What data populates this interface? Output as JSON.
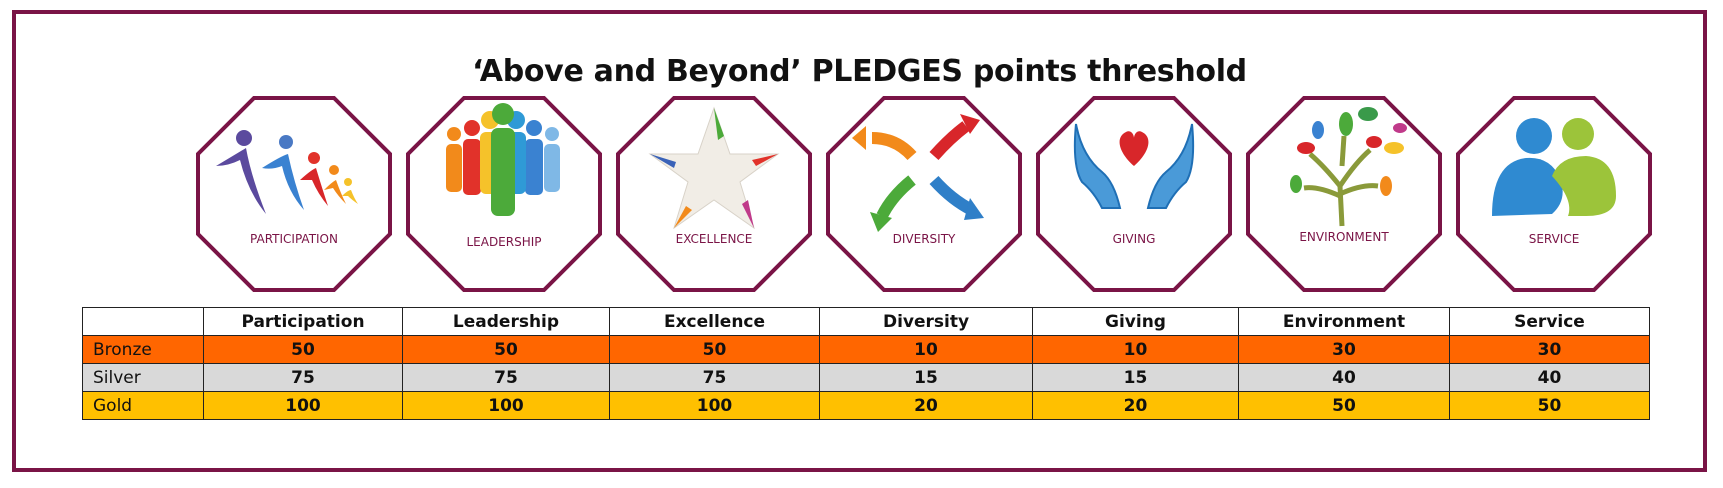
{
  "title": "‘Above and Beyond’ PLEDGES points threshold",
  "pledges": [
    {
      "label": "PARTICIPATION",
      "icon": "participation-icon"
    },
    {
      "label": "LEADERSHIP",
      "icon": "leadership-icon"
    },
    {
      "label": "EXCELLENCE",
      "icon": "excellence-icon"
    },
    {
      "label": "DIVERSITY",
      "icon": "diversity-icon"
    },
    {
      "label": "GIVING",
      "icon": "giving-icon"
    },
    {
      "label": "ENVIRONMENT",
      "icon": "environment-icon"
    },
    {
      "label": "SERVICE",
      "icon": "service-icon"
    }
  ],
  "table": {
    "columns": [
      "",
      "Participation",
      "Leadership",
      "Excellence",
      "Diversity",
      "Giving",
      "Environment",
      "Service"
    ],
    "rows": [
      {
        "label": "Bronze",
        "values": [
          "50",
          "50",
          "50",
          "10",
          "10",
          "30",
          "30"
        ],
        "color": "#ff6600"
      },
      {
        "label": "Silver",
        "values": [
          "75",
          "75",
          "75",
          "15",
          "15",
          "40",
          "40"
        ],
        "color": "#d9d9d9"
      },
      {
        "label": "Gold",
        "values": [
          "100",
          "100",
          "100",
          "20",
          "20",
          "50",
          "50"
        ],
        "color": "#ffc000"
      }
    ]
  },
  "colors": {
    "frame": "#7a1446",
    "bronze": "#ff6600",
    "silver": "#d9d9d9",
    "gold": "#ffc000"
  }
}
